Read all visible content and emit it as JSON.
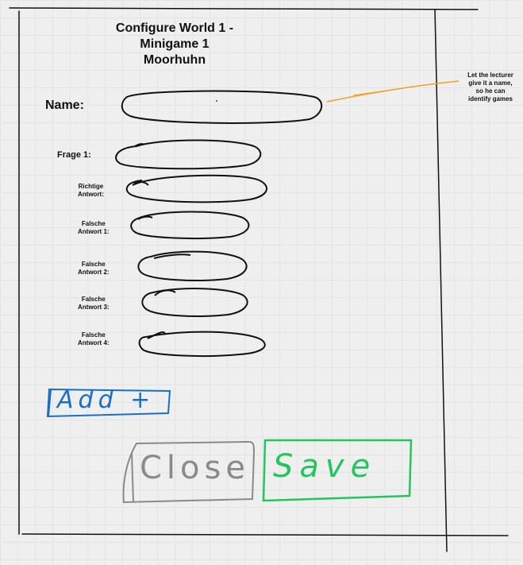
{
  "dialog": {
    "title_lines": [
      "Configure World 1 -",
      "Minigame 1",
      "Moorhuhn"
    ]
  },
  "form": {
    "name_label": "Name:",
    "question_label": "Frage 1:",
    "correct_label": [
      "Richtige",
      "Antwort:"
    ],
    "wrong_1_label": [
      "Falsche",
      "Antwort 1:"
    ],
    "wrong_2_label": [
      "Falsche",
      "Antwort 2:"
    ],
    "wrong_3_label": [
      "Falsche",
      "Antwort 3:"
    ],
    "wrong_4_label": [
      "Falsche",
      "Antwort 4:"
    ]
  },
  "annotation": {
    "note_lines": [
      "Let the lecturer",
      "give it a name,",
      "so he can",
      "identify games"
    ],
    "color": "#f0a020"
  },
  "buttons": {
    "add_label": "Add +",
    "close_label": "Close",
    "save_label": "Save",
    "add_color": "#1a6fc4",
    "close_color": "#8a8a8a",
    "save_color": "#22c55e"
  }
}
